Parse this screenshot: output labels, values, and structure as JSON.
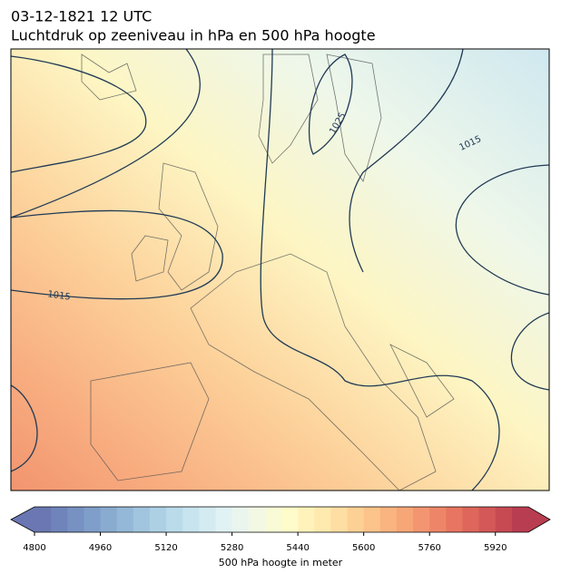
{
  "title": [
    "03-12-1821 12 UTC",
    "Luchtdruk op zeeniveau in hPa en 500 hPa hoogte"
  ],
  "contour_labels": [
    "1025",
    "1015",
    "1015"
  ],
  "colorbar": {
    "label": "500 hPa hoogte in meter",
    "lim": [
      4800,
      6000
    ],
    "ticks": [
      4800,
      4960,
      5120,
      5280,
      5440,
      5600,
      5760,
      5920
    ],
    "colors": [
      "#6a77b2",
      "#6f84bb",
      "#7791c2",
      "#7f9ec9",
      "#89abcf",
      "#94b8d7",
      "#a1c5de",
      "#add0e5",
      "#badbea",
      "#c7e4ef",
      "#d4ebf1",
      "#e0f2f3",
      "#eaf5ee",
      "#f2f8e3",
      "#f9fbd6",
      "#fffccb",
      "#fff3bb",
      "#fee9ae",
      "#fedea2",
      "#fdd195",
      "#fcc38a",
      "#f9b47f",
      "#f7a677",
      "#f39570",
      "#ee8568",
      "#e77561",
      "#de665b",
      "#d35857",
      "#c74a53",
      "#b93d50"
    ]
  }
}
